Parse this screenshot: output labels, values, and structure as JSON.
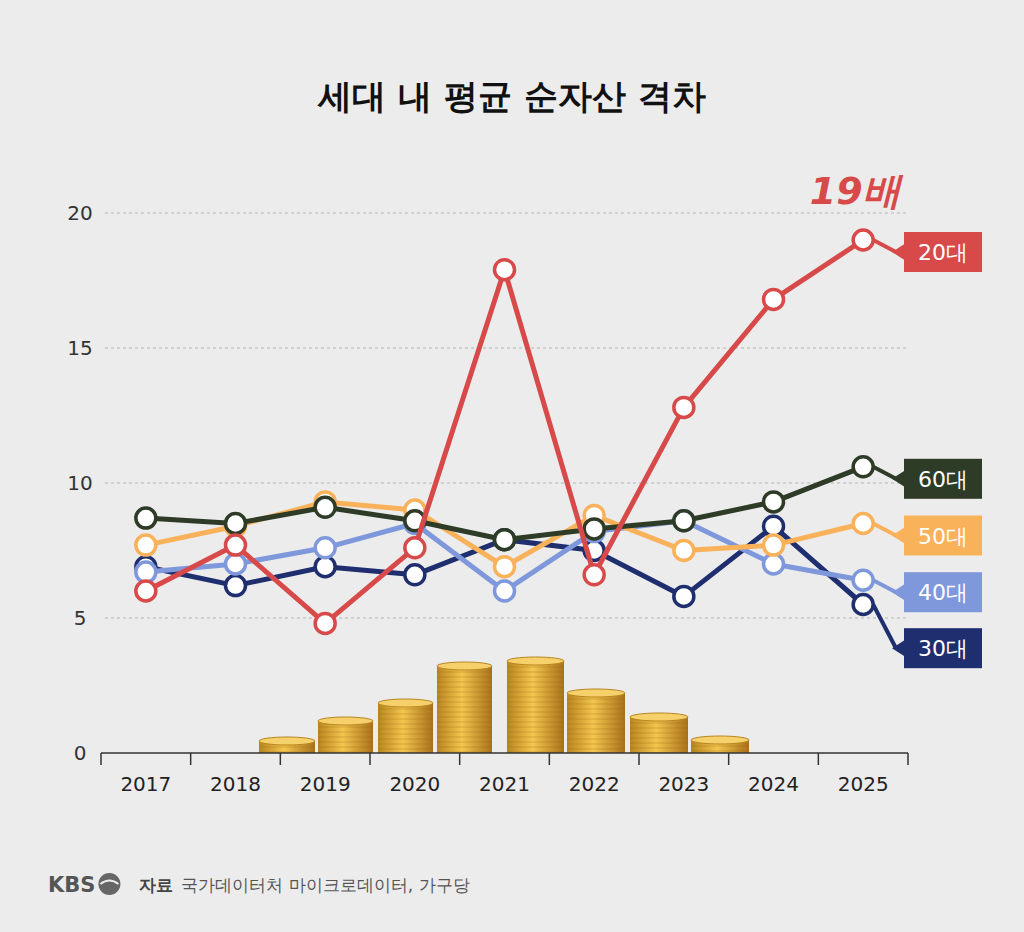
{
  "chart_data": {
    "type": "line",
    "title": "세대 내 평균 순자산 격차",
    "categories": [
      "2017",
      "2018",
      "2019",
      "2020",
      "2021",
      "2022",
      "2023",
      "2024",
      "2025"
    ],
    "series": [
      {
        "name": "20대",
        "color": "#d84a4a",
        "values": [
          6.0,
          7.7,
          4.8,
          7.6,
          17.9,
          6.6,
          12.8,
          16.8,
          19.0
        ]
      },
      {
        "name": "60대",
        "color": "#2e3b27",
        "values": [
          8.7,
          8.5,
          9.1,
          8.6,
          7.9,
          8.3,
          8.6,
          9.3,
          10.6
        ]
      },
      {
        "name": "50대",
        "color": "#f9b15a",
        "values": [
          7.7,
          8.4,
          9.3,
          9.0,
          6.9,
          8.8,
          7.5,
          7.7,
          8.5
        ]
      },
      {
        "name": "40대",
        "color": "#7f98dc",
        "values": [
          6.7,
          7.0,
          7.6,
          8.5,
          6.0,
          8.2,
          8.6,
          7.0,
          6.4
        ]
      },
      {
        "name": "30대",
        "color": "#1f2e6e",
        "values": [
          6.9,
          6.2,
          6.9,
          6.6,
          7.9,
          7.5,
          5.8,
          8.4,
          5.5
        ]
      }
    ],
    "ylim": [
      0,
      20
    ],
    "yticks": [
      0,
      5,
      10,
      15,
      20
    ],
    "grid": true,
    "marker": "circle",
    "annotation": "19배",
    "logo": "KBS",
    "source_label": "자료",
    "source": "국가데이터처 마이크로데이터, 가구당"
  }
}
